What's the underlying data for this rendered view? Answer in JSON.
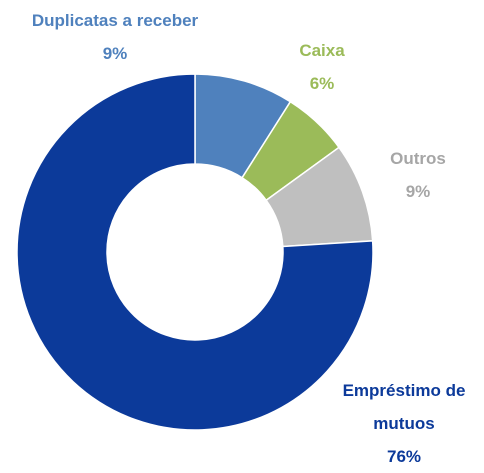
{
  "chart_data": {
    "type": "donut",
    "categories": [
      "Duplicatas a receber",
      "Caixa",
      "Outros",
      "Empréstimo de mutuos"
    ],
    "values": [
      9,
      6,
      9,
      76
    ],
    "value_labels": [
      "9%",
      "6%",
      "9%",
      "76%"
    ],
    "colors": [
      "#4f81bd",
      "#9bbb59",
      "#bfbfbf",
      "#0c3a9a"
    ]
  }
}
